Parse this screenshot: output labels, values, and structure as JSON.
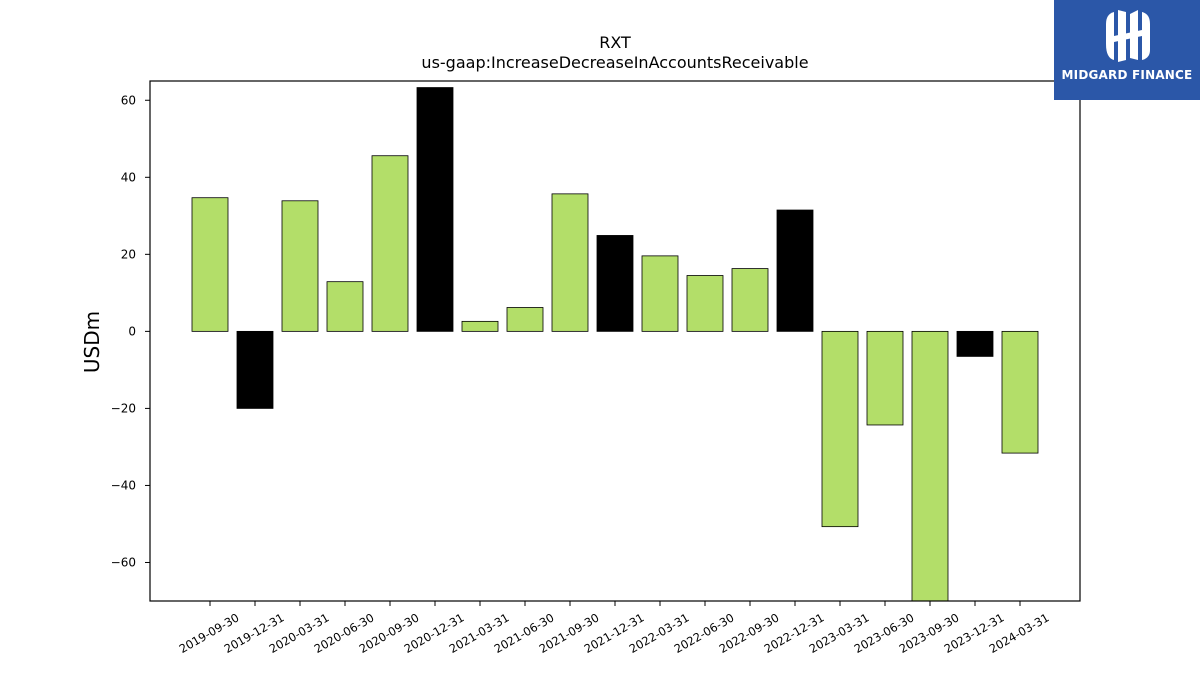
{
  "brand": {
    "name": "MIDGARD FINANCE",
    "bg_color": "#2b57a8",
    "icon": "midgard-logo-icon"
  },
  "chart_data": {
    "type": "bar",
    "title": "RXT",
    "subtitle": "us-gaap:IncreaseDecreaseInAccountsReceivable",
    "xlabel": "",
    "ylabel": "USDm",
    "ylim": [
      -70,
      65
    ],
    "yticks": [
      60,
      40,
      20,
      0,
      -20,
      -40,
      -60
    ],
    "grid": false,
    "categories": [
      "2019-09-30",
      "2019-12-31",
      "2020-03-31",
      "2020-06-30",
      "2020-09-30",
      "2020-12-31",
      "2021-03-31",
      "2021-06-30",
      "2021-09-30",
      "2021-12-31",
      "2022-03-31",
      "2022-06-30",
      "2022-09-30",
      "2022-12-31",
      "2023-03-31",
      "2023-06-30",
      "2023-09-30",
      "2023-12-31",
      "2024-03-31"
    ],
    "values": [
      34.7,
      -20.0,
      33.9,
      12.9,
      45.6,
      63.3,
      2.6,
      6.2,
      35.7,
      24.9,
      19.6,
      14.5,
      16.3,
      31.5,
      -50.7,
      -24.3,
      -70.0,
      -6.5,
      -31.6
    ],
    "bar_colors": [
      "#b3de69",
      "#000000",
      "#b3de69",
      "#b3de69",
      "#b3de69",
      "#000000",
      "#b3de69",
      "#b3de69",
      "#b3de69",
      "#000000",
      "#b3de69",
      "#b3de69",
      "#b3de69",
      "#000000",
      "#b3de69",
      "#b3de69",
      "#b3de69",
      "#000000",
      "#b3de69"
    ]
  }
}
